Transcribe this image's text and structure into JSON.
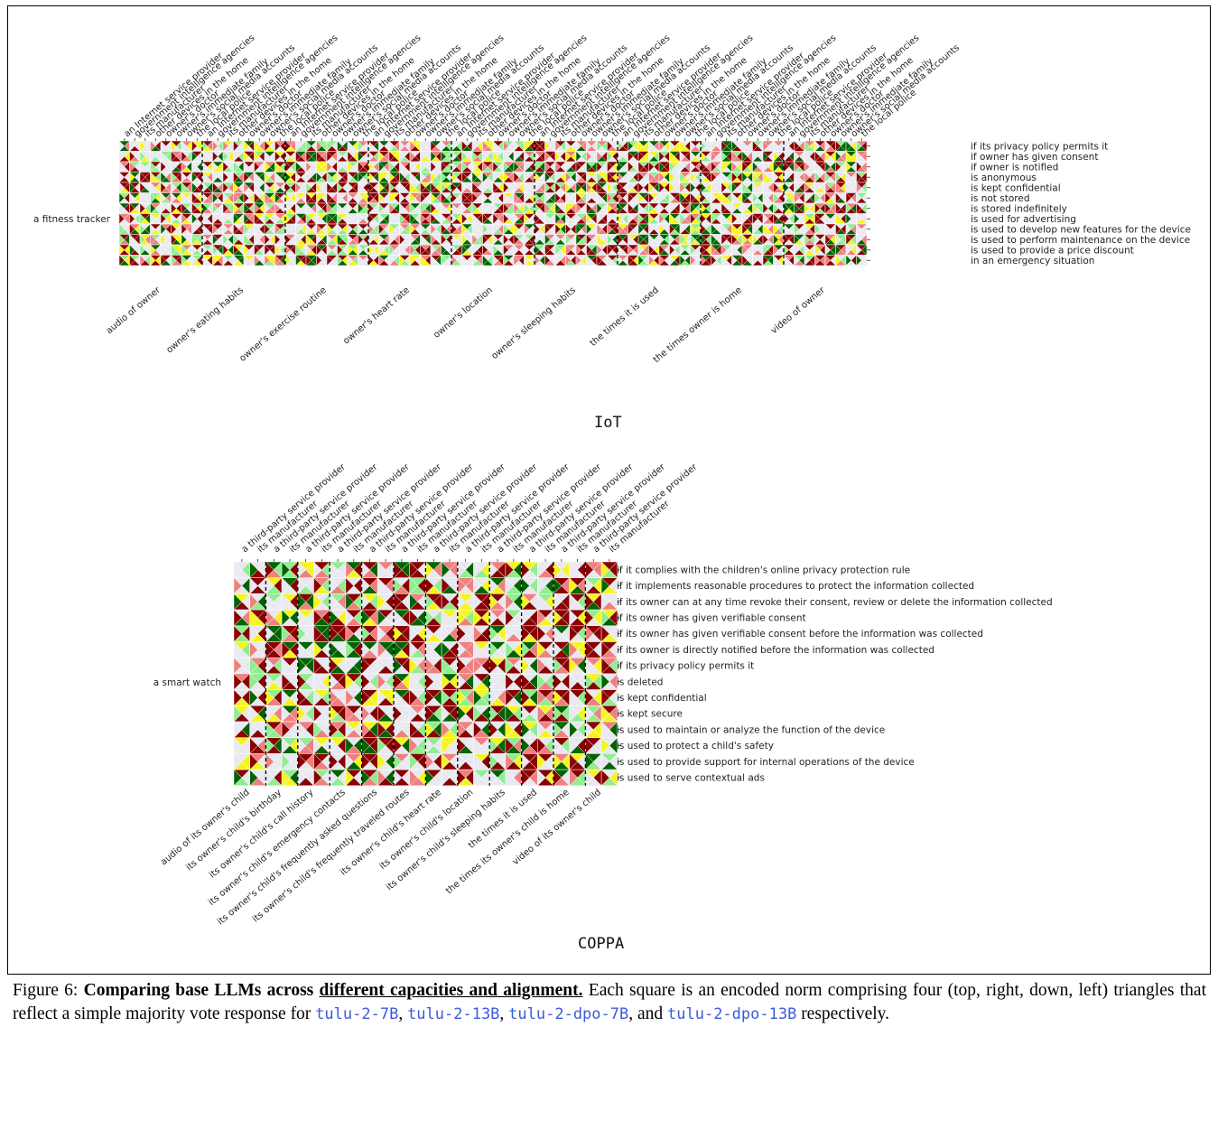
{
  "colors": {
    "bg": "#e8e8f0",
    "dark_red": "#8b0000",
    "light_red": "#f08080",
    "yellow": "#f5f51e",
    "light_green": "#90ee90",
    "dark_green": "#006400",
    "white": "#ffffff"
  },
  "panel_labels": {
    "iot": "IoT",
    "coppa": "COPPA"
  },
  "caption": {
    "prefix": "Figure 6: ",
    "bold1": "Comparing base LLMs across ",
    "underlined": "different capacities and alignment.",
    "text1": " Each square is an encoded norm comprising four (top, right, down, left) triangles that reflect a simple majority vote response for ",
    "m1": "tulu-2-7B",
    "sep1": ", ",
    "m2": "tulu-2-13B",
    "sep2": ", ",
    "m3": "tulu-2-dpo-7B",
    "sep3": ", and ",
    "m4": "tulu-2-dpo-13B",
    "text2": " respectively."
  },
  "chart_data": [
    {
      "type": "heatmap",
      "title": "IoT",
      "ylabel": "a fitness tracker",
      "recipients": [
        "an Internet service provider",
        "government intelligence agencies",
        "its manufacturer",
        "other devices in the home",
        "owner's doctor",
        "owner's immediate family",
        "owner's social media accounts",
        "the local police"
      ],
      "groups": [
        "audio of owner",
        "owner's eating habits",
        "owner's exercise routine",
        "owner's heart rate",
        "owner's location",
        "owner's sleeping habits",
        "the times it is used",
        "the times owner is home",
        "video of owner"
      ],
      "rows": [
        "if its privacy policy permits it",
        "if owner has given consent",
        "if owner is notified",
        "is anonymous",
        "is kept confidential",
        "is not stored",
        "is stored indefinitely",
        "is used for advertising",
        "is used to develop new features for the device",
        "is used to perform maintenance on the device",
        "is used to provide a price discount",
        "in an emergency situation"
      ],
      "triangle_order": [
        "tulu-2-7B",
        "tulu-2-13B",
        "tulu-2-dpo-7B",
        "tulu-2-dpo-13B"
      ]
    },
    {
      "type": "heatmap",
      "title": "COPPA",
      "ylabel": "a smart watch",
      "recipients": [
        "a third-party service provider",
        "its manufacturer"
      ],
      "groups": [
        "audio of its owner's child",
        "its owner's child's birthday",
        "its owner's child's call history",
        "its owner's child's emergency contacts",
        "its owner's child's frequently asked questions",
        "its owner's child's frequently traveled routes",
        "its owner's child's heart rate",
        "its owner's child's location",
        "its owner's child's sleeping habits",
        "the times it is used",
        "the times its owner's child is home",
        "video of its owner's child"
      ],
      "rows": [
        "if it complies with the children's online privacy protection rule",
        "if it implements reasonable procedures to protect the information collected",
        "if its owner can at any time revoke their consent, review or delete the information collected",
        "if its owner has given verifiable consent",
        "if its owner has given verifiable consent before the information was collected",
        "if its owner is directly notified before the information was collected",
        "if its privacy policy permits it",
        "is deleted",
        "is kept confidential",
        "is kept secure",
        "is used to maintain or analyze the function of the device",
        "is used to protect a child's safety",
        "is used to provide support for internal operations of the device",
        "is used to serve contextual ads"
      ],
      "triangle_order": [
        "tulu-2-7B",
        "tulu-2-13B",
        "tulu-2-dpo-7B",
        "tulu-2-dpo-13B"
      ]
    }
  ]
}
